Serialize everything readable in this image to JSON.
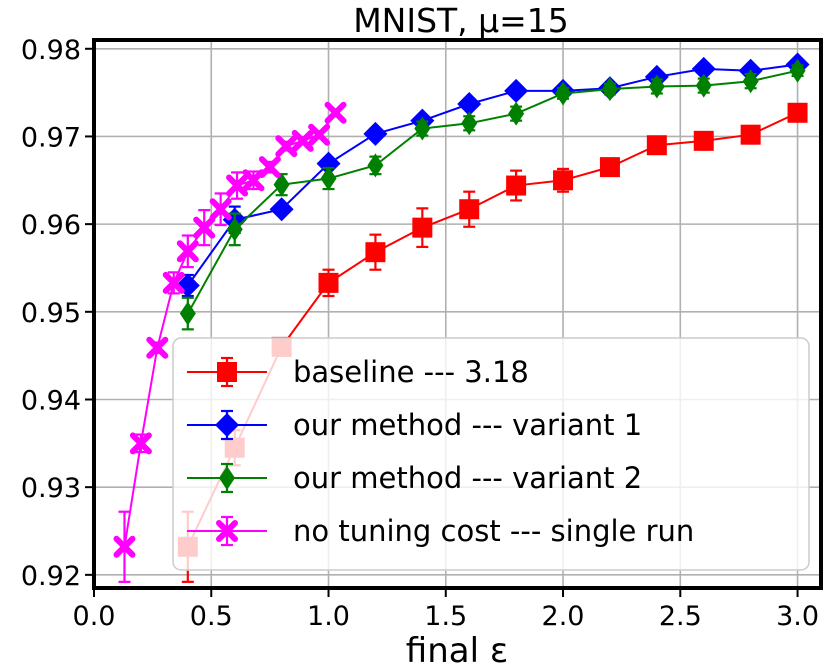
{
  "chart_data": {
    "type": "line",
    "title": "MNIST, μ=15",
    "xlabel": "final ε",
    "ylabel": "",
    "xlim": [
      0.0,
      3.1
    ],
    "ylim": [
      0.9185,
      0.981
    ],
    "x_ticks": [
      "0.0",
      "0.5",
      "1.0",
      "1.5",
      "2.0",
      "2.5",
      "3.0"
    ],
    "y_ticks": [
      "0.92",
      "0.93",
      "0.94",
      "0.95",
      "0.96",
      "0.97",
      "0.98"
    ],
    "x_tick_values": [
      0.0,
      0.5,
      1.0,
      1.5,
      2.0,
      2.5,
      3.0
    ],
    "y_tick_values": [
      0.92,
      0.93,
      0.94,
      0.95,
      0.96,
      0.97,
      0.98
    ],
    "grid": true,
    "legend_position": "lower-right",
    "series": [
      {
        "name": "baseline --- 3.18",
        "color": "#ff0000",
        "marker": "square",
        "points": [
          {
            "x": 0.4,
            "y": 0.9232,
            "err": 0.004
          },
          {
            "x": 0.6,
            "y": 0.9345,
            "err": 0.002
          },
          {
            "x": 0.8,
            "y": 0.946,
            "err": 0.001
          },
          {
            "x": 1.0,
            "y": 0.9533,
            "err": 0.0015
          },
          {
            "x": 1.2,
            "y": 0.9568,
            "err": 0.002
          },
          {
            "x": 1.4,
            "y": 0.9596,
            "err": 0.0022
          },
          {
            "x": 1.6,
            "y": 0.9617,
            "err": 0.002
          },
          {
            "x": 1.8,
            "y": 0.9644,
            "err": 0.0017
          },
          {
            "x": 2.0,
            "y": 0.965,
            "err": 0.0013
          },
          {
            "x": 2.2,
            "y": 0.9665,
            "err": 0.0006
          },
          {
            "x": 2.4,
            "y": 0.969,
            "err": 0.0005
          },
          {
            "x": 2.6,
            "y": 0.9695,
            "err": 0.0005
          },
          {
            "x": 2.8,
            "y": 0.9702,
            "err": 0.0006
          },
          {
            "x": 3.0,
            "y": 0.9727,
            "err": 0.0005
          }
        ]
      },
      {
        "name": "our method --- variant 1",
        "color": "#0000ff",
        "marker": "diamond",
        "points": [
          {
            "x": 0.4,
            "y": 0.953,
            "err": 0.0012
          },
          {
            "x": 0.6,
            "y": 0.9605,
            "err": 0.0015
          },
          {
            "x": 0.8,
            "y": 0.9617,
            "err": 0.0005
          },
          {
            "x": 1.0,
            "y": 0.9669,
            "err": 0.0005
          },
          {
            "x": 1.2,
            "y": 0.9703,
            "err": 0.0004
          },
          {
            "x": 1.4,
            "y": 0.9718,
            "err": 0.0004
          },
          {
            "x": 1.6,
            "y": 0.9737,
            "err": 0.0004
          },
          {
            "x": 1.8,
            "y": 0.9752,
            "err": 0.0003
          },
          {
            "x": 2.0,
            "y": 0.9752,
            "err": 0.0003
          },
          {
            "x": 2.2,
            "y": 0.9755,
            "err": 0.0003
          },
          {
            "x": 2.4,
            "y": 0.9768,
            "err": 0.0003
          },
          {
            "x": 2.6,
            "y": 0.9777,
            "err": 0.0003
          },
          {
            "x": 2.8,
            "y": 0.9775,
            "err": 0.0003
          },
          {
            "x": 3.0,
            "y": 0.9782,
            "err": 0.0003
          }
        ]
      },
      {
        "name": "our method --- variant 2",
        "color": "#008000",
        "marker": "thin-diamond",
        "points": [
          {
            "x": 0.4,
            "y": 0.9498,
            "err": 0.0018
          },
          {
            "x": 0.6,
            "y": 0.9594,
            "err": 0.0018
          },
          {
            "x": 0.8,
            "y": 0.9645,
            "err": 0.0012
          },
          {
            "x": 1.0,
            "y": 0.9652,
            "err": 0.0012
          },
          {
            "x": 1.2,
            "y": 0.9667,
            "err": 0.001
          },
          {
            "x": 1.4,
            "y": 0.9709,
            "err": 0.0008
          },
          {
            "x": 1.6,
            "y": 0.9715,
            "err": 0.0008
          },
          {
            "x": 1.8,
            "y": 0.9726,
            "err": 0.0008
          },
          {
            "x": 2.0,
            "y": 0.9749,
            "err": 0.0006
          },
          {
            "x": 2.2,
            "y": 0.9754,
            "err": 0.0006
          },
          {
            "x": 2.4,
            "y": 0.9757,
            "err": 0.0008
          },
          {
            "x": 2.6,
            "y": 0.9758,
            "err": 0.0008
          },
          {
            "x": 2.8,
            "y": 0.9763,
            "err": 0.0008
          },
          {
            "x": 3.0,
            "y": 0.9775,
            "err": 0.0006
          }
        ]
      },
      {
        "name": "no tuning cost --- single run",
        "color": "#ff00ff",
        "marker": "x-filled",
        "points": [
          {
            "x": 0.13,
            "y": 0.9232,
            "err": 0.004
          },
          {
            "x": 0.2,
            "y": 0.935,
            "err": 0.001
          },
          {
            "x": 0.27,
            "y": 0.9459,
            "err": 0.0006
          },
          {
            "x": 0.34,
            "y": 0.9533,
            "err": 0.0012
          },
          {
            "x": 0.4,
            "y": 0.9569,
            "err": 0.0018
          },
          {
            "x": 0.47,
            "y": 0.9596,
            "err": 0.002
          },
          {
            "x": 0.54,
            "y": 0.9617,
            "err": 0.0018
          },
          {
            "x": 0.61,
            "y": 0.9644,
            "err": 0.0015
          },
          {
            "x": 0.68,
            "y": 0.965,
            "err": 0.001
          },
          {
            "x": 0.75,
            "y": 0.9665,
            "err": 0.0006
          },
          {
            "x": 0.82,
            "y": 0.9689,
            "err": 0.0005
          },
          {
            "x": 0.89,
            "y": 0.9695,
            "err": 0.0004
          },
          {
            "x": 0.96,
            "y": 0.9702,
            "err": 0.0004
          },
          {
            "x": 1.03,
            "y": 0.9727,
            "err": 0.0004
          }
        ]
      }
    ]
  }
}
